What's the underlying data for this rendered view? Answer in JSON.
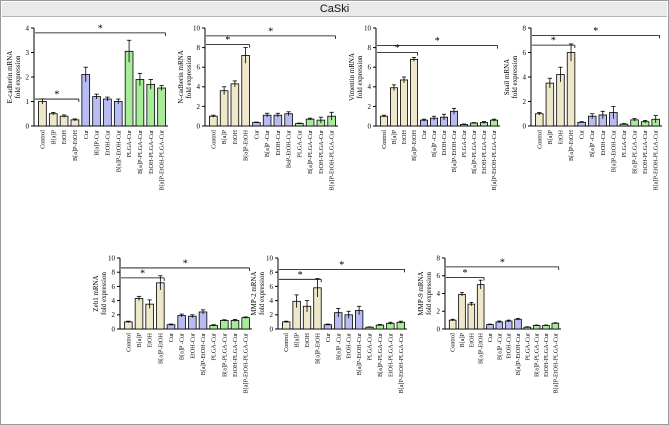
{
  "figure_title": "CaSki",
  "colors": {
    "tan": "#efe7c9",
    "lavender": "#b8bcf2",
    "green": "#a8ec9a",
    "outline": "#000000"
  },
  "chart_data": [
    {
      "type": "bar",
      "ylabel": [
        "E-cadherin mRNA",
        "fold expression"
      ],
      "ylim": [
        0,
        4
      ],
      "yticks": [
        0,
        1,
        2,
        3,
        4
      ],
      "categories": [
        "Control",
        "B[a]P",
        "EtOH",
        "B[a]P-EtOH",
        "Cur",
        "B[a]P-Cur",
        "EtOH-Cur",
        "B[a]P-EtOH-Cur",
        "PLGA-Cur",
        "B[a]P-PLGA-Cur",
        "EtOH-PLGA-Cur",
        "B[a]P-EtOH-PLGA-Cur"
      ],
      "values": [
        1.0,
        0.5,
        0.4,
        0.25,
        2.1,
        1.2,
        1.1,
        1.0,
        3.05,
        1.9,
        1.7,
        1.55
      ],
      "errors": [
        0.1,
        0.05,
        0.05,
        0.04,
        0.3,
        0.1,
        0.08,
        0.1,
        0.45,
        0.25,
        0.2,
        0.1
      ],
      "colors": [
        "tan",
        "tan",
        "tan",
        "tan",
        "lavender",
        "lavender",
        "lavender",
        "lavender",
        "green",
        "green",
        "green",
        "green"
      ],
      "significance": [
        {
          "from": 0,
          "to": 3,
          "y": 1.1,
          "label": "*"
        },
        {
          "from": 0,
          "to": 11,
          "y": 3.8,
          "label": "*"
        }
      ]
    },
    {
      "type": "bar",
      "ylabel": [
        "N-cadherin mRNA",
        "fold expression"
      ],
      "ylim": [
        0,
        10
      ],
      "yticks": [
        0,
        2,
        4,
        6,
        8,
        10
      ],
      "categories": [
        "Control",
        "B[a]P",
        "EtOH",
        "B[a]P-EtOH",
        "Cur",
        "B[a]P -Cur",
        "EtOH-Cur",
        "BaP-EtOH-Cur",
        "PLGA-Cur",
        "B[a]P-PLGA-Cur",
        "EtOH-PLGA-Cur",
        "B[a]P-EtOH-PLGA-Cur"
      ],
      "values": [
        1.0,
        3.6,
        4.3,
        7.2,
        0.35,
        1.1,
        1.1,
        1.25,
        0.25,
        0.7,
        0.6,
        1.0
      ],
      "errors": [
        0.1,
        0.4,
        0.3,
        0.8,
        0.05,
        0.2,
        0.2,
        0.2,
        0.05,
        0.1,
        0.3,
        0.4
      ],
      "colors": [
        "tan",
        "tan",
        "tan",
        "tan",
        "lavender",
        "lavender",
        "lavender",
        "lavender",
        "green",
        "green",
        "green",
        "green"
      ],
      "significance": [
        {
          "from": 0,
          "to": 3,
          "y": 8.3,
          "label": "*"
        },
        {
          "from": 0,
          "to": 11,
          "y": 9.2,
          "label": "*"
        }
      ]
    },
    {
      "type": "bar",
      "ylabel": [
        "Vimentin mRNA",
        "fold expression"
      ],
      "ylim": [
        0,
        10
      ],
      "yticks": [
        0,
        2,
        4,
        6,
        8,
        10
      ],
      "categories": [
        "Control",
        "B[a]P",
        "EtOH",
        "B[a]P-EtOH",
        "Cur",
        "B[a]P -Cur",
        "EtOH-Cur",
        "B[a]P-EtOH-Cur",
        "PLGA-Cur",
        "B[a]P-PLGA-Cur",
        "EtOH-PLGA-Cur",
        "B[a]P-EtOH-PLGA-Cur"
      ],
      "values": [
        1.0,
        3.9,
        4.7,
        6.8,
        0.6,
        0.8,
        0.9,
        1.5,
        0.15,
        0.3,
        0.35,
        0.6
      ],
      "errors": [
        0.1,
        0.3,
        0.3,
        0.2,
        0.1,
        0.2,
        0.3,
        0.3,
        0.05,
        0.05,
        0.1,
        0.1
      ],
      "colors": [
        "tan",
        "tan",
        "tan",
        "tan",
        "lavender",
        "lavender",
        "lavender",
        "lavender",
        "green",
        "green",
        "green",
        "green"
      ],
      "significance": [
        {
          "from": 0,
          "to": 3,
          "y": 7.5,
          "label": "*"
        },
        {
          "from": 0,
          "to": 11,
          "y": 8.2,
          "label": "*"
        }
      ]
    },
    {
      "type": "bar",
      "ylabel": [
        "Snail mRNA",
        "fold expression"
      ],
      "ylim": [
        0,
        8
      ],
      "yticks": [
        0,
        2,
        4,
        6,
        8
      ],
      "categories": [
        "Control",
        "B[a]P",
        "EtOH",
        "B[a]P-EtOH",
        "Cur",
        "B[a]P -Cur",
        "EtOH-Cur",
        "B[a]P-EtOH-Cur",
        "PLGA-Cur",
        "B[a]P-PLGA-Cur",
        "EtOH-PLGA-Cur",
        "B[a]P-EtOH-PLGA-Cur"
      ],
      "values": [
        1.0,
        3.5,
        4.2,
        6.0,
        0.3,
        0.8,
        0.9,
        1.1,
        0.15,
        0.5,
        0.35,
        0.55
      ],
      "errors": [
        0.1,
        0.4,
        0.6,
        0.7,
        0.05,
        0.2,
        0.3,
        0.5,
        0.05,
        0.1,
        0.1,
        0.3
      ],
      "colors": [
        "tan",
        "tan",
        "tan",
        "tan",
        "lavender",
        "lavender",
        "lavender",
        "lavender",
        "green",
        "green",
        "green",
        "green"
      ],
      "significance": [
        {
          "from": 0,
          "to": 3,
          "y": 6.6,
          "label": "*"
        },
        {
          "from": 0,
          "to": 11,
          "y": 7.4,
          "label": "*"
        }
      ]
    },
    {
      "type": "bar",
      "ylabel": [
        "Zeb1 mRNA",
        "fold expression"
      ],
      "ylim": [
        0,
        10
      ],
      "yticks": [
        0,
        2,
        4,
        6,
        8,
        10
      ],
      "categories": [
        "Control",
        "B[a]P",
        "EtOH",
        "B[a]P-EtOH",
        "Cur",
        "B[a]P -Cur",
        "EtOH-Cur",
        "B[a]P-EtOH-Cur",
        "PLGA-Cur",
        "B[a]P-PLGA-Cur",
        "EtOH-PLGA-Cur",
        "B[a]P-EtOH-PLGA-Cur"
      ],
      "values": [
        1.0,
        4.3,
        3.5,
        6.5,
        0.6,
        1.9,
        1.8,
        2.4,
        0.5,
        1.2,
        1.2,
        1.6
      ],
      "errors": [
        0.1,
        0.3,
        0.6,
        1.0,
        0.1,
        0.2,
        0.2,
        0.3,
        0.1,
        0.1,
        0.15,
        0.1
      ],
      "colors": [
        "tan",
        "tan",
        "tan",
        "tan",
        "lavender",
        "lavender",
        "lavender",
        "lavender",
        "green",
        "green",
        "green",
        "green"
      ],
      "significance": [
        {
          "from": 0,
          "to": 3,
          "y": 7.2,
          "label": "*"
        },
        {
          "from": 0,
          "to": 11,
          "y": 8.6,
          "label": "*"
        }
      ]
    },
    {
      "type": "bar",
      "ylabel": [
        "MMP-2 mRNA",
        "fold expression"
      ],
      "ylim": [
        0,
        10
      ],
      "yticks": [
        0,
        2,
        4,
        6,
        8,
        10
      ],
      "categories": [
        "Control",
        "B[a]P",
        "EtOH",
        "B[a]P-EtOH",
        "Cur",
        "B[a]P -Cur",
        "EtOH-Cur",
        "B[a]P-EtOH-Cur",
        "PLGA-Cur",
        "B[a]P-PLGA-Cur",
        "EtOH-PLGA-Cur",
        "B[a]P-EtOH-PLGA-Cur"
      ],
      "values": [
        1.0,
        3.9,
        3.2,
        5.8,
        0.6,
        2.3,
        2.0,
        2.6,
        0.25,
        0.55,
        0.8,
        0.95
      ],
      "errors": [
        0.1,
        0.9,
        0.8,
        1.3,
        0.1,
        0.6,
        0.5,
        0.6,
        0.05,
        0.1,
        0.15,
        0.15
      ],
      "colors": [
        "tan",
        "tan",
        "tan",
        "tan",
        "lavender",
        "lavender",
        "lavender",
        "lavender",
        "green",
        "green",
        "green",
        "green"
      ],
      "significance": [
        {
          "from": 0,
          "to": 3,
          "y": 7.0,
          "label": "*"
        },
        {
          "from": 0,
          "to": 11,
          "y": 8.4,
          "label": "*"
        }
      ]
    },
    {
      "type": "bar",
      "ylabel": [
        "MMP-9 mRNA",
        "fold expression"
      ],
      "ylim": [
        0,
        8
      ],
      "yticks": [
        0,
        2,
        4,
        6,
        8
      ],
      "categories": [
        "Control",
        "B[a]P",
        "EtOH",
        "B[a]P-EtOH",
        "Cur",
        "B[a]P -Cur",
        "EtOH-Cur",
        "B[a]P-EtOH-Cur",
        "PLGA-Cur",
        "B[a]P-PLGA-Cur",
        "EtOH-PLGA-Cur",
        "B[a]P-EtOH-PLGA-Cur"
      ],
      "values": [
        1.0,
        3.9,
        2.8,
        5.0,
        0.5,
        0.8,
        0.9,
        1.1,
        0.2,
        0.4,
        0.4,
        0.65
      ],
      "errors": [
        0.1,
        0.2,
        0.2,
        0.5,
        0.05,
        0.1,
        0.1,
        0.1,
        0.05,
        0.05,
        0.05,
        0.05
      ],
      "colors": [
        "tan",
        "tan",
        "tan",
        "tan",
        "lavender",
        "lavender",
        "lavender",
        "lavender",
        "green",
        "green",
        "green",
        "green"
      ],
      "significance": [
        {
          "from": 0,
          "to": 3,
          "y": 5.8,
          "label": "*"
        },
        {
          "from": 0,
          "to": 11,
          "y": 7.0,
          "label": "*"
        }
      ]
    }
  ]
}
